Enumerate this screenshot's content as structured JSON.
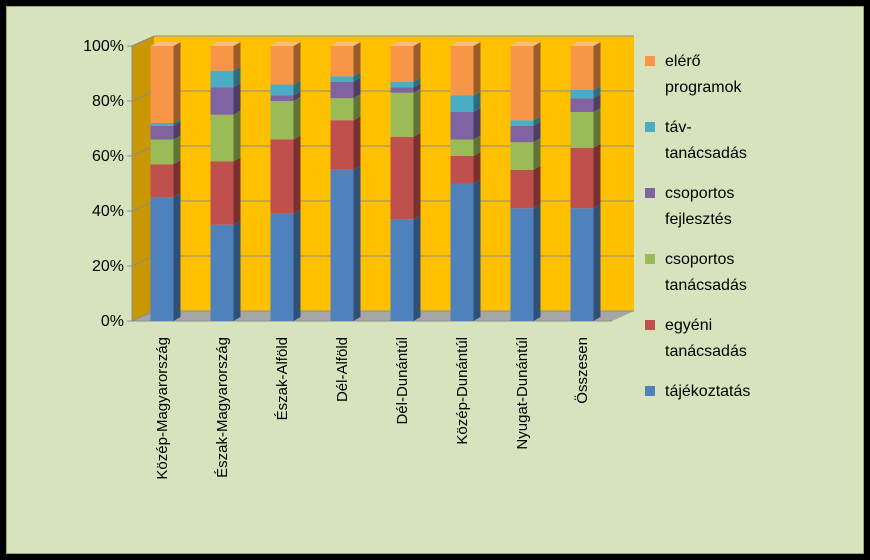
{
  "chart_data": {
    "type": "bar",
    "stacked": true,
    "percent_stacked": true,
    "three_d": true,
    "categories": [
      "Közép-Magyarország",
      "Észak-Magyarország",
      "Észak-Alföld",
      "Dél-Alföld",
      "Dél-Dunántúl",
      "Közép-Dunántúl",
      "Nyugat-Dunántúl",
      "Összesen"
    ],
    "series": [
      {
        "name": "tájékoztatás",
        "color": "#4f81bd",
        "values": [
          45,
          35,
          39,
          55,
          37,
          50,
          41,
          41
        ]
      },
      {
        "name": "egyéni tanácsadás",
        "color": "#c0504d",
        "values": [
          12,
          23,
          27,
          18,
          30,
          10,
          14,
          22
        ]
      },
      {
        "name": "csoportos tanácsadás",
        "color": "#9bbb59",
        "values": [
          9,
          17,
          14,
          8,
          16,
          6,
          10,
          13
        ]
      },
      {
        "name": "csoportos fejlesztés",
        "color": "#8064a2",
        "values": [
          5,
          10,
          2,
          6,
          2,
          10,
          6,
          5
        ]
      },
      {
        "name": "táv-tanácsadás",
        "color": "#4bacc6",
        "values": [
          1,
          6,
          4,
          2,
          2,
          6,
          2,
          3
        ]
      },
      {
        "name": "elérő programok",
        "color": "#f79646",
        "values": [
          28,
          9,
          14,
          11,
          13,
          18,
          27,
          16
        ]
      }
    ],
    "ylim": [
      0,
      100
    ],
    "yticks": [
      "0%",
      "20%",
      "40%",
      "60%",
      "80%",
      "100%"
    ],
    "legend_labels": [
      [
        "elérő",
        "programok"
      ],
      [
        "táv-",
        "tanácsadás"
      ],
      [
        "csoportos",
        "fejlesztés"
      ],
      [
        "csoportos",
        "tanácsadás"
      ],
      [
        "egyéni",
        "tanácsadás"
      ],
      [
        "tájékoztatás"
      ]
    ],
    "legend_position": "right",
    "plot_background": "#ffc000",
    "grid": true
  }
}
